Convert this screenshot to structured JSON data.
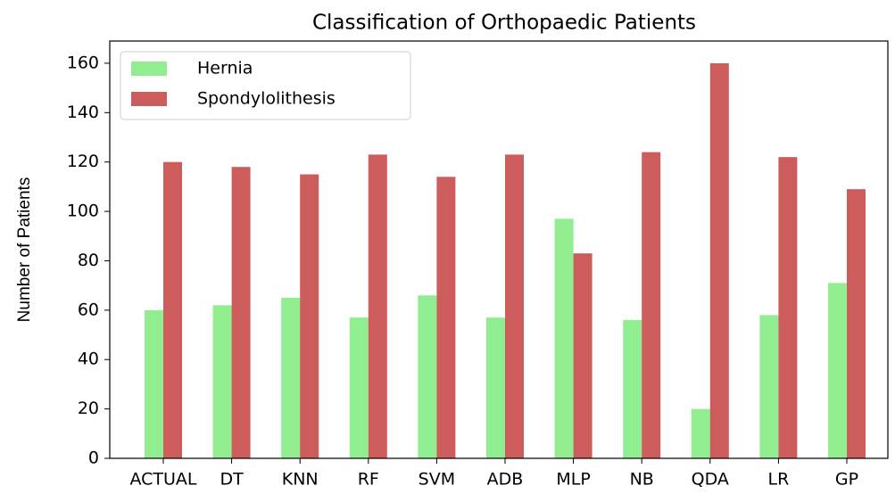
{
  "chart_data": {
    "type": "bar",
    "title": "Classification of Orthopaedic Patients",
    "y_label": "Number of Patients",
    "categories": [
      "ACTUAL",
      "DT",
      "KNN",
      "RF",
      "SVM",
      "ADB",
      "MLP",
      "NB",
      "QDA",
      "LR",
      "GP"
    ],
    "series": [
      {
        "name": "Hernia",
        "color": "#90ee90",
        "values": [
          60,
          62,
          65,
          57,
          66,
          57,
          97,
          56,
          20,
          58,
          71
        ]
      },
      {
        "name": "Spondylolithesis",
        "color": "#cd5c5c",
        "values": [
          120,
          118,
          115,
          123,
          114,
          123,
          83,
          124,
          160,
          122,
          109
        ]
      }
    ],
    "ylim": [
      0,
      169
    ],
    "yticks": [
      0,
      20,
      40,
      60,
      80,
      100,
      120,
      140,
      160
    ],
    "legend": "upper left"
  }
}
